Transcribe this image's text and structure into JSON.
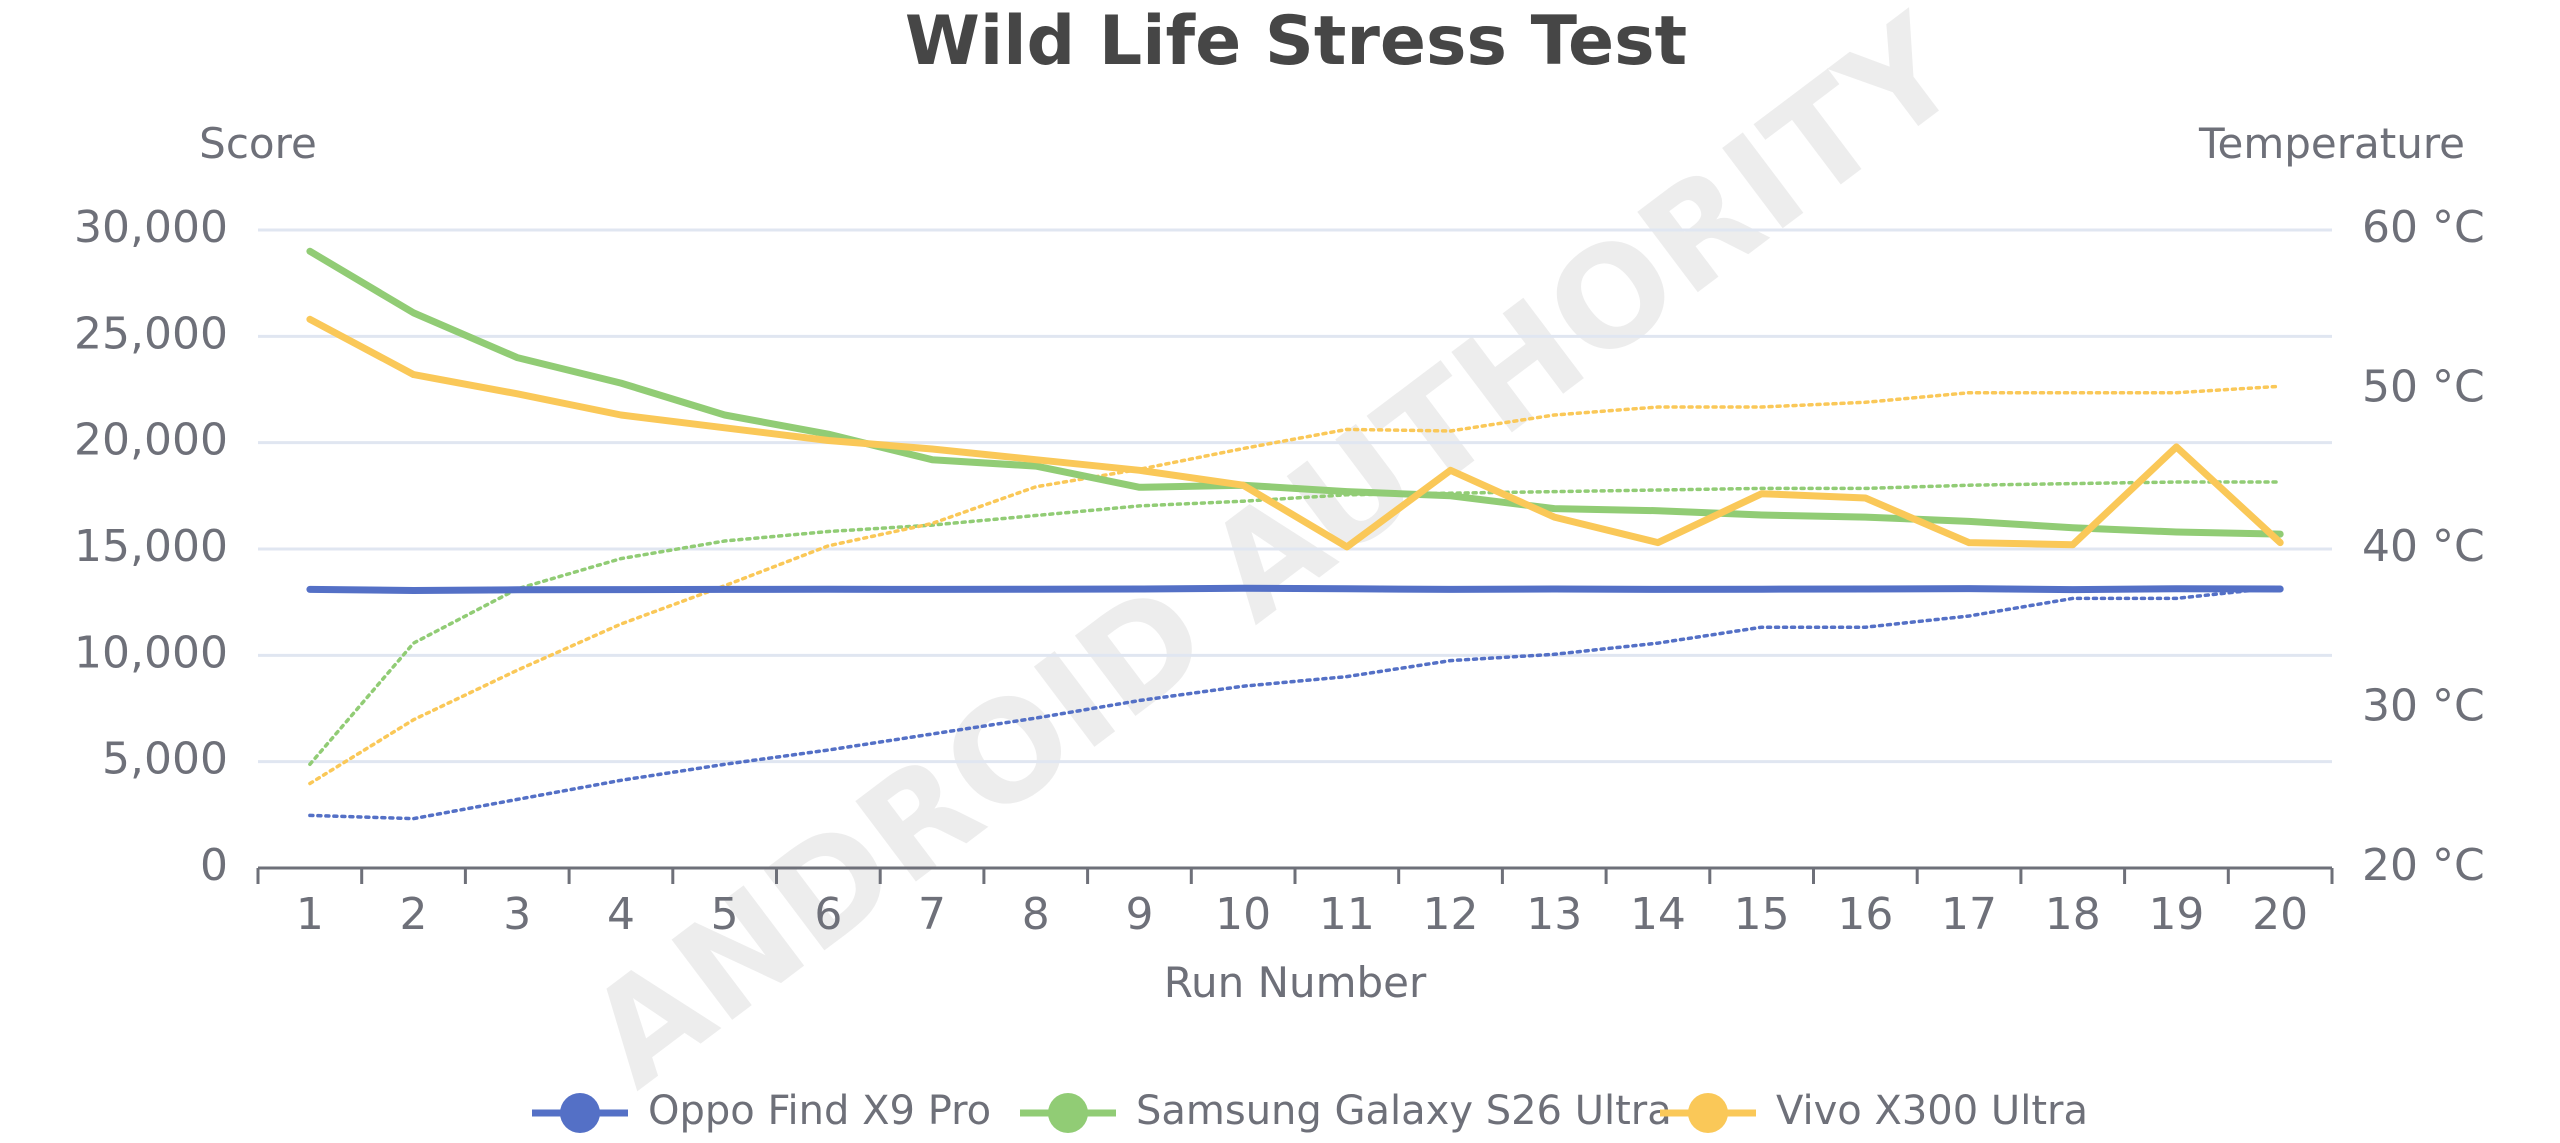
{
  "chart_data": {
    "type": "line",
    "title": "Wild Life Stress Test",
    "watermark": "ANDROID AUTHORITY",
    "xlabel": "Run Number",
    "ylabel_left": "Score",
    "ylabel_right": "Temperature",
    "x": [
      1,
      2,
      3,
      4,
      5,
      6,
      7,
      8,
      9,
      10,
      11,
      12,
      13,
      14,
      15,
      16,
      17,
      18,
      19,
      20
    ],
    "ylim_left": [
      0,
      30000
    ],
    "yticks_left": [
      "0",
      "5,000",
      "10,000",
      "15,000",
      "20,000",
      "25,000",
      "30,000"
    ],
    "ylim_right": [
      20,
      60
    ],
    "yticks_right": [
      "20 °C",
      "30 °C",
      "40 °C",
      "50 °C",
      "60 °C"
    ],
    "grid": true,
    "legend_position": "bottom-center",
    "series": [
      {
        "name": "Oppo Find X9 Pro",
        "color": "#5470c6",
        "score": [
          13100,
          13050,
          13080,
          13090,
          13100,
          13110,
          13100,
          13110,
          13120,
          13150,
          13130,
          13100,
          13120,
          13100,
          13110,
          13120,
          13140,
          13090,
          13130,
          13120
        ],
        "temperature": [
          23.3,
          23.1,
          24.3,
          25.5,
          26.5,
          27.4,
          28.4,
          29.4,
          30.5,
          31.4,
          32.0,
          33.0,
          33.4,
          34.1,
          35.1,
          35.1,
          35.8,
          36.9,
          36.9,
          37.6
        ]
      },
      {
        "name": "Samsung Galaxy S26 Ultra",
        "color": "#91cc75",
        "score": [
          29000,
          26100,
          24000,
          22800,
          21300,
          20400,
          19200,
          18900,
          17900,
          18000,
          17700,
          17500,
          16900,
          16800,
          16600,
          16500,
          16300,
          16000,
          15800,
          15700
        ],
        "temperature": [
          26.5,
          34.1,
          37.5,
          39.4,
          40.5,
          41.1,
          41.5,
          42.1,
          42.7,
          43.0,
          43.4,
          43.5,
          43.6,
          43.7,
          43.8,
          43.8,
          44.0,
          44.1,
          44.2,
          44.2
        ]
      },
      {
        "name": "Vivo X300 Ultra",
        "color": "#fac858",
        "score": [
          25800,
          23200,
          22300,
          21300,
          20700,
          20100,
          19700,
          19200,
          18700,
          18000,
          15100,
          18700,
          16500,
          15300,
          17600,
          17400,
          15300,
          15200,
          19800,
          15300
        ],
        "temperature": [
          25.3,
          29.3,
          32.4,
          35.3,
          37.7,
          40.2,
          41.6,
          43.9,
          45.0,
          46.3,
          47.5,
          47.4,
          48.4,
          48.9,
          48.9,
          49.2,
          49.8,
          49.8,
          49.8,
          50.2
        ]
      }
    ]
  }
}
